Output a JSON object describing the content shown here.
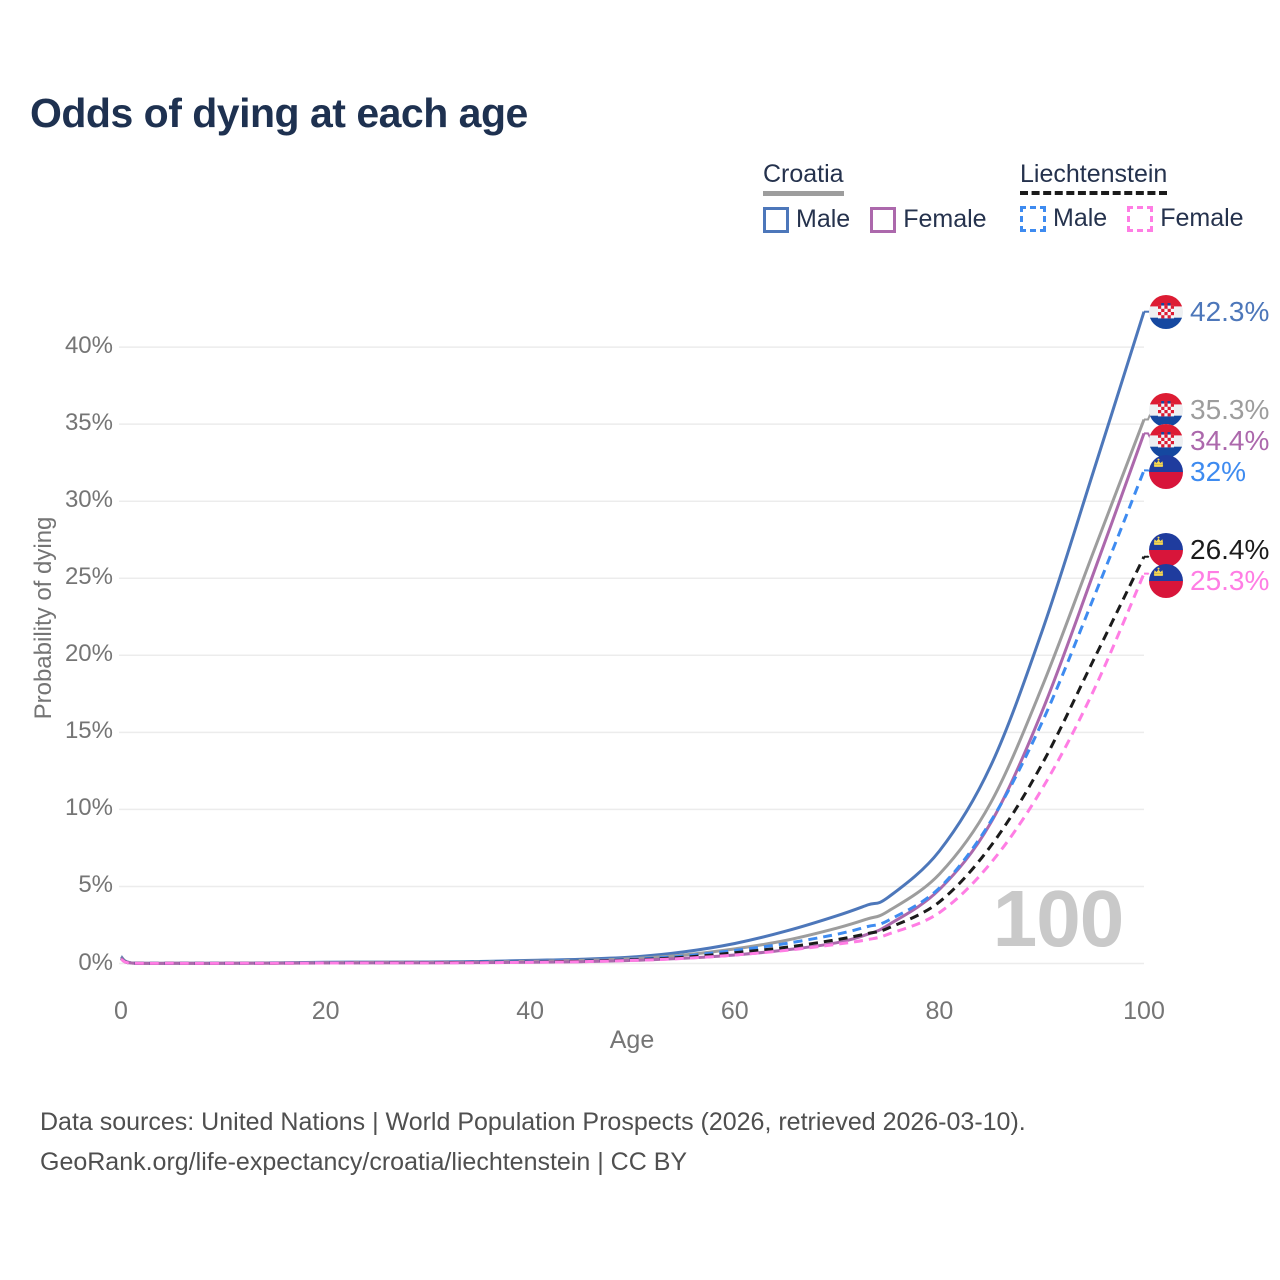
{
  "page": {
    "title": "Odds of dying at each age"
  },
  "legend": {
    "groups": [
      {
        "label": "Croatia",
        "line_style": "solid",
        "line_color": "#9d9d9d",
        "items": [
          {
            "label": "Male",
            "color": "#4d77ba",
            "style": "solid"
          },
          {
            "label": "Female",
            "color": "#ac68ac",
            "style": "solid"
          }
        ]
      },
      {
        "label": "Liechtenstein",
        "line_style": "dashed",
        "line_color": "#1b1b1b",
        "items": [
          {
            "label": "Male",
            "color": "#3e8bf0",
            "style": "dashed"
          },
          {
            "label": "Female",
            "color": "#ff7de4",
            "style": "dashed"
          }
        ]
      }
    ]
  },
  "chart_data": {
    "type": "line",
    "title": "Odds of dying at each age",
    "xlabel": "Age",
    "ylabel": "Probability of dying",
    "xlim": [
      0,
      100
    ],
    "ylim_pct": [
      0,
      43
    ],
    "x_ticks": [
      0,
      20,
      40,
      60,
      80,
      100
    ],
    "y_ticks_pct": [
      0,
      5,
      10,
      15,
      20,
      25,
      30,
      35,
      40
    ],
    "y_tick_suffix": "%",
    "grid": "horizontal",
    "legend_position": "top-right",
    "watermark": "100",
    "x": [
      0,
      1,
      5,
      10,
      15,
      20,
      25,
      30,
      35,
      40,
      45,
      50,
      55,
      60,
      65,
      70,
      73,
      75,
      80,
      85,
      90,
      95,
      100
    ],
    "series": [
      {
        "name": "Croatia Male",
        "country": "Croatia",
        "sex": "Male",
        "flag": "croatia",
        "color": "#4d77ba",
        "dashed": false,
        "end_label": "42.3%",
        "values_pct": [
          0.45,
          0.04,
          0.01,
          0.02,
          0.04,
          0.08,
          0.09,
          0.1,
          0.13,
          0.2,
          0.28,
          0.42,
          0.75,
          1.3,
          2.1,
          3.1,
          3.8,
          4.3,
          7.3,
          12.8,
          21.5,
          31.8,
          42.3
        ]
      },
      {
        "name": "Croatia Both sexes",
        "country": "Croatia",
        "sex": "Both",
        "flag": "croatia",
        "color": "#9d9d9d",
        "dashed": false,
        "end_label": "35.3%",
        "values_pct": [
          0.4,
          0.03,
          0.01,
          0.01,
          0.03,
          0.06,
          0.07,
          0.07,
          0.09,
          0.14,
          0.2,
          0.32,
          0.55,
          0.95,
          1.5,
          2.3,
          2.9,
          3.4,
          5.8,
          10.4,
          17.9,
          26.6,
          35.3
        ]
      },
      {
        "name": "Croatia Female",
        "country": "Croatia",
        "sex": "Female",
        "flag": "croatia",
        "color": "#ac68ac",
        "dashed": false,
        "end_label": "34.4%",
        "values_pct": [
          0.36,
          0.03,
          0.01,
          0.01,
          0.02,
          0.03,
          0.04,
          0.04,
          0.06,
          0.08,
          0.12,
          0.2,
          0.34,
          0.55,
          0.88,
          1.35,
          1.9,
          2.5,
          4.8,
          9.1,
          16.3,
          25.2,
          34.4
        ]
      },
      {
        "name": "Liechtenstein Male",
        "country": "Liechtenstein",
        "sex": "Male",
        "flag": "liechtenstein",
        "color": "#3e8bf0",
        "dashed": true,
        "end_label": "32%",
        "values_pct": [
          0.33,
          0.02,
          0.01,
          0.01,
          0.03,
          0.05,
          0.06,
          0.07,
          0.09,
          0.13,
          0.18,
          0.28,
          0.48,
          0.85,
          1.3,
          1.9,
          2.4,
          2.8,
          4.9,
          9.2,
          15.6,
          23.6,
          32.0
        ]
      },
      {
        "name": "Liechtenstein Both sexes",
        "country": "Liechtenstein",
        "sex": "Both",
        "flag": "liechtenstein",
        "color": "#1b1b1b",
        "dashed": true,
        "end_label": "26.4%",
        "values_pct": [
          0.31,
          0.02,
          0.01,
          0.01,
          0.02,
          0.04,
          0.05,
          0.06,
          0.07,
          0.1,
          0.15,
          0.24,
          0.4,
          0.7,
          1.05,
          1.55,
          1.95,
          2.3,
          4.0,
          7.6,
          12.9,
          19.6,
          26.4
        ]
      },
      {
        "name": "Liechtenstein Female",
        "country": "Liechtenstein",
        "sex": "Female",
        "flag": "liechtenstein",
        "color": "#ff7de4",
        "dashed": true,
        "end_label": "25.3%",
        "values_pct": [
          0.29,
          0.02,
          0.01,
          0.01,
          0.02,
          0.03,
          0.04,
          0.04,
          0.05,
          0.08,
          0.12,
          0.2,
          0.33,
          0.55,
          0.85,
          1.25,
          1.55,
          1.9,
          3.3,
          6.5,
          11.3,
          17.6,
          25.3
        ]
      }
    ]
  },
  "footer": {
    "line1": "Data sources: United Nations | World Population Prospects (2026, retrieved 2026-03-10).",
    "line2": "GeoRank.org/life-expectancy/croatia/liechtenstein | CC BY"
  }
}
